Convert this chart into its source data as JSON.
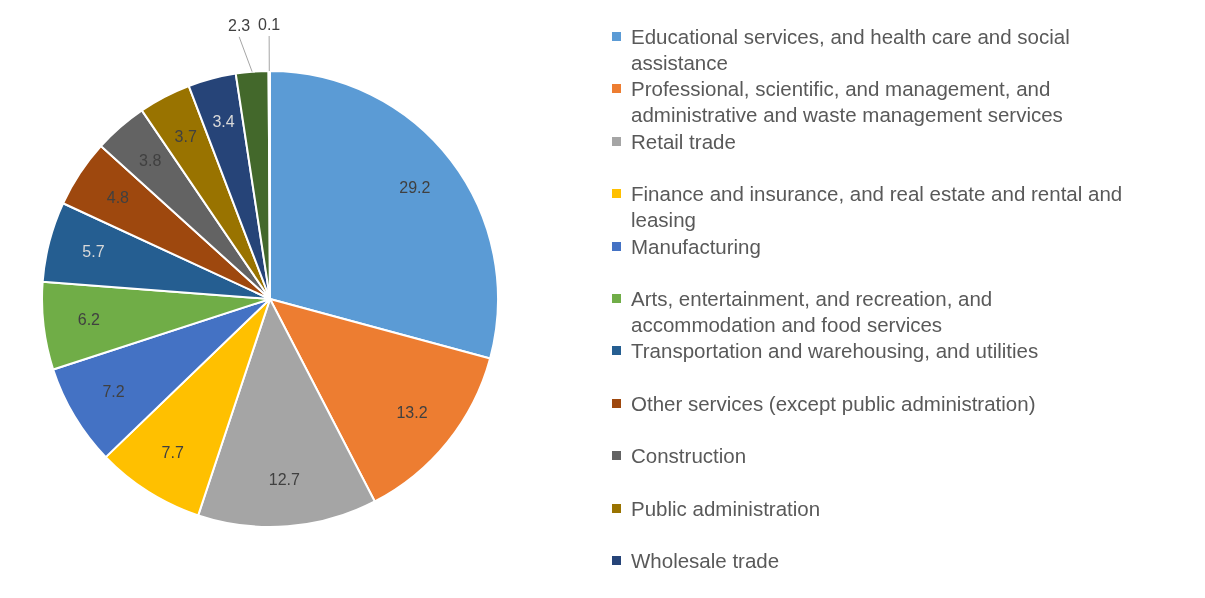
{
  "chart_data": {
    "type": "pie",
    "categories": [
      "Educational services, and health care and social assistance",
      "Professional, scientific, and management, and administrative and waste management services",
      "Retail trade",
      "Finance and insurance, and real estate and rental and leasing",
      "Manufacturing",
      "Arts, entertainment, and recreation, and accommodation and food services",
      "Transportation and warehousing, and utilities",
      "Other services (except public administration)",
      "Construction",
      "Public administration",
      "Wholesale trade",
      null,
      null
    ],
    "values": [
      29.2,
      13.2,
      12.7,
      7.7,
      7.2,
      6.2,
      5.7,
      4.8,
      3.8,
      3.7,
      3.4,
      2.3,
      0.1
    ],
    "colors": [
      "#5b9bd5",
      "#ed7d31",
      "#a5a5a5",
      "#ffc000",
      "#4472c4",
      "#70ad47",
      "#255e91",
      "#9e480e",
      "#636363",
      "#997300",
      "#264478",
      "#43682b",
      "#698ed0"
    ],
    "data_labels": true,
    "legend": "right"
  }
}
